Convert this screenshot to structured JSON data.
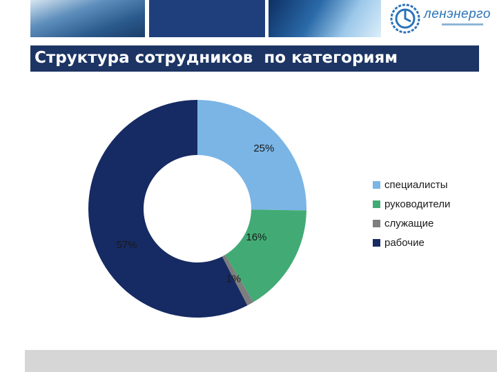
{
  "header": {
    "logo_text": "ленэнерго",
    "title": "Структура сотрудников  по категориям"
  },
  "colors": {
    "title_bar": "#1d3564",
    "logo": "#2a72b8"
  },
  "chart_data": {
    "type": "pie",
    "variant": "donut",
    "title": "",
    "categories": [
      "специалисты",
      "руководители",
      "служащие",
      "рабочие"
    ],
    "values": [
      25,
      16,
      1,
      57
    ],
    "labels": [
      "25%",
      "16%",
      "1%",
      "57%"
    ],
    "colors": [
      "#7ab5e6",
      "#42ab75",
      "#7e7e7e",
      "#162a63"
    ],
    "legend_position": "right"
  }
}
